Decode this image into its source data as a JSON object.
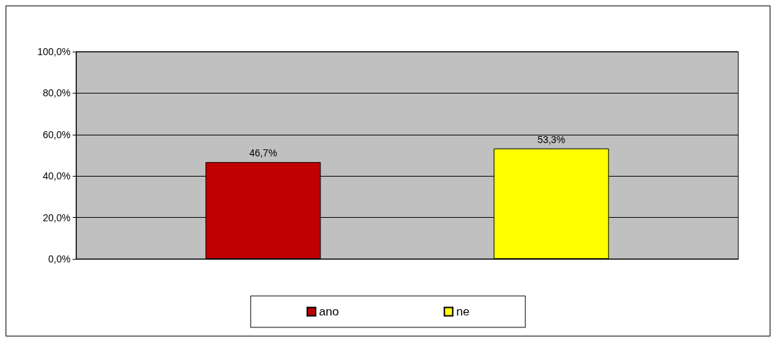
{
  "chart_data": {
    "type": "bar",
    "categories": [
      null
    ],
    "series": [
      {
        "name": "ano",
        "color": "#c00000",
        "values": [
          46.7
        ],
        "value_labels": [
          "46,7%"
        ]
      },
      {
        "name": "ne",
        "color": "#ffff00",
        "values": [
          53.3
        ],
        "value_labels": [
          "53,3%"
        ]
      }
    ],
    "ylim": [
      0,
      100
    ],
    "yticks": [
      {
        "value": 0,
        "label": "0,0%"
      },
      {
        "value": 20,
        "label": "20,0%"
      },
      {
        "value": 40,
        "label": "40,0%"
      },
      {
        "value": 60,
        "label": "60,0%"
      },
      {
        "value": 80,
        "label": "80,0%"
      },
      {
        "value": 100,
        "label": "100,0%"
      }
    ],
    "grid": "y",
    "legend": "bottom"
  }
}
